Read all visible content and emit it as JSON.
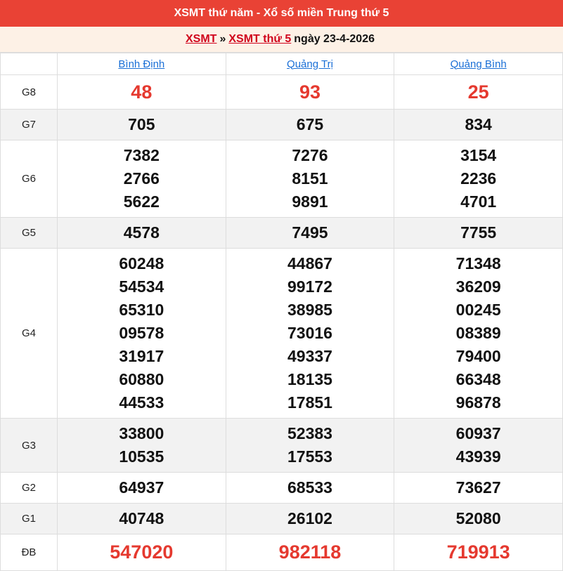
{
  "title": "XSMT thứ năm - Xổ số miền Trung thứ 5",
  "breadcrumb": {
    "link1": "XSMT",
    "sep": "»",
    "link2": "XSMT thứ 5",
    "date": "ngày 23-4-2026"
  },
  "provinces": [
    "Bình Định",
    "Quảng Trị",
    "Quảng Bình"
  ],
  "prizes": [
    {
      "label": "G8",
      "red": true,
      "values": [
        [
          "48"
        ],
        [
          "93"
        ],
        [
          "25"
        ]
      ]
    },
    {
      "label": "G7",
      "values": [
        [
          "705"
        ],
        [
          "675"
        ],
        [
          "834"
        ]
      ]
    },
    {
      "label": "G6",
      "values": [
        [
          "7382",
          "2766",
          "5622"
        ],
        [
          "7276",
          "8151",
          "9891"
        ],
        [
          "3154",
          "2236",
          "4701"
        ]
      ]
    },
    {
      "label": "G5",
      "values": [
        [
          "4578"
        ],
        [
          "7495"
        ],
        [
          "7755"
        ]
      ]
    },
    {
      "label": "G4",
      "values": [
        [
          "60248",
          "54534",
          "65310",
          "09578",
          "31917",
          "60880",
          "44533"
        ],
        [
          "44867",
          "99172",
          "38985",
          "73016",
          "49337",
          "18135",
          "17851"
        ],
        [
          "71348",
          "36209",
          "00245",
          "08389",
          "79400",
          "66348",
          "96878"
        ]
      ]
    },
    {
      "label": "G3",
      "values": [
        [
          "33800",
          "10535"
        ],
        [
          "52383",
          "17553"
        ],
        [
          "60937",
          "43939"
        ]
      ]
    },
    {
      "label": "G2",
      "values": [
        [
          "64937"
        ],
        [
          "68533"
        ],
        [
          "73627"
        ]
      ]
    },
    {
      "label": "G1",
      "values": [
        [
          "40748"
        ],
        [
          "26102"
        ],
        [
          "52080"
        ]
      ]
    },
    {
      "label": "ĐB",
      "red": true,
      "values": [
        [
          "547020"
        ],
        [
          "982118"
        ],
        [
          "719913"
        ]
      ]
    }
  ],
  "colors": {
    "header": "#e94235",
    "highlight": "#e5392f",
    "link": "#1a6fd6"
  }
}
